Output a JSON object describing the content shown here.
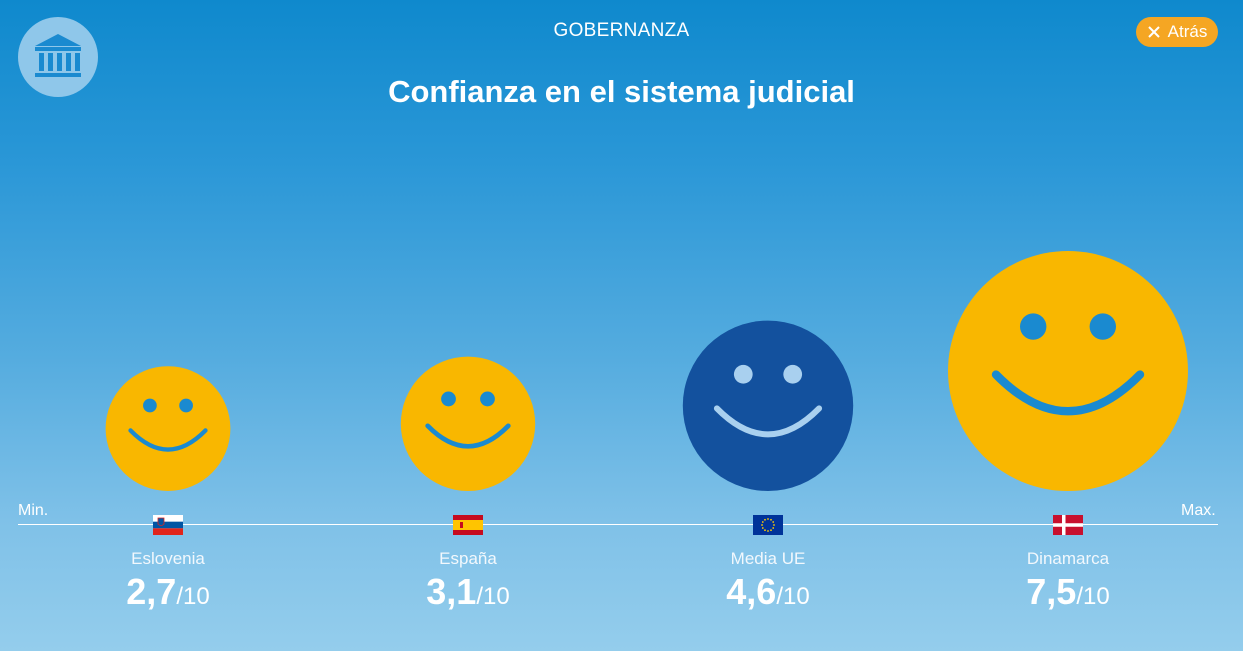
{
  "header": {
    "section": "GOBERNANZA",
    "back_label": "Atrás",
    "title": "Confianza en el sistema judicial"
  },
  "icons": {
    "logo": "institution-building-icon",
    "close": "close-icon"
  },
  "colors": {
    "happy_face": "#f9b700",
    "happy_face_features": "#1a8ad0",
    "average_face": "#13519e",
    "average_face_features": "#a9d0ef",
    "back_button": "#f5a623"
  },
  "axis": {
    "min_label": "Min.",
    "max_label": "Max."
  },
  "chart_data": {
    "type": "bar",
    "title": "Confianza en el sistema judicial",
    "categories": [
      "Eslovenia",
      "España",
      "Media UE",
      "Dinamarca"
    ],
    "values": [
      2.7,
      3.1,
      4.6,
      7.5
    ],
    "display_values": [
      "2,7",
      "3,1",
      "4,6",
      "7,5"
    ],
    "denominator": "/10",
    "ylim": [
      0,
      10
    ],
    "flags": [
      "slovenia-flag",
      "spain-flag",
      "eu-flag",
      "denmark-flag"
    ]
  }
}
